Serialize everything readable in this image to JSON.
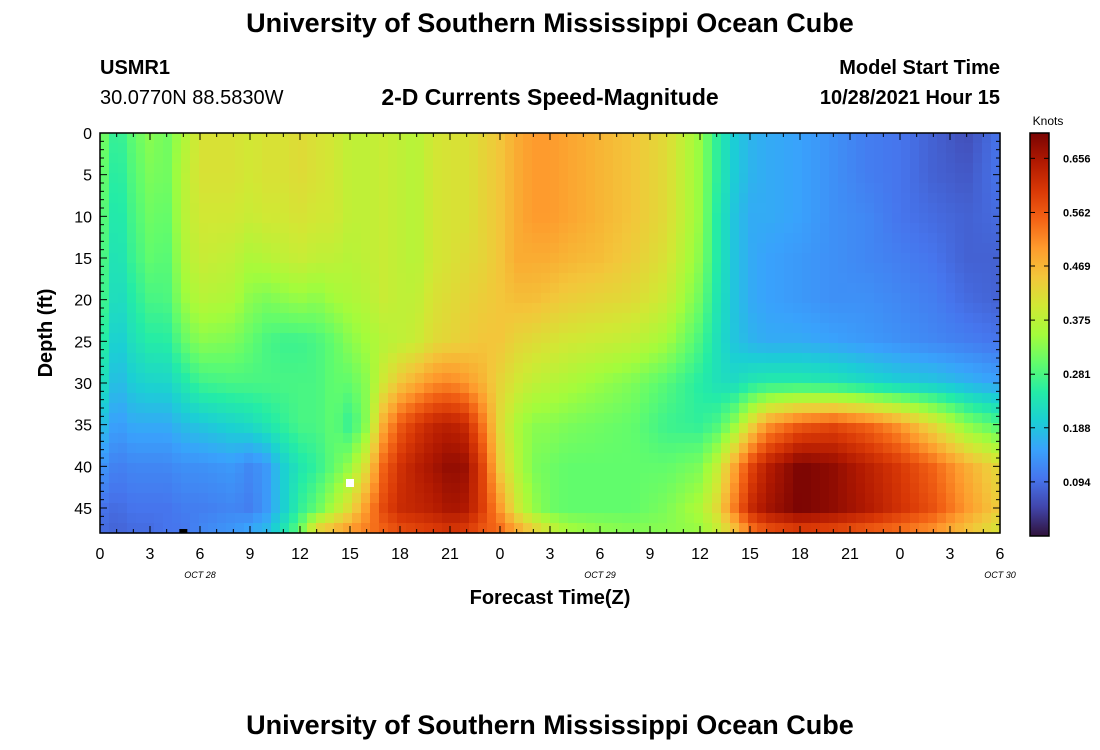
{
  "page": {
    "title_top": "University of Southern Mississippi Ocean Cube",
    "title_bottom": "University of Southern Mississippi Ocean Cube"
  },
  "header": {
    "station": "USMR1",
    "coords": "30.0770N  88.5830W",
    "product": "2-D Currents Speed-Magnitude",
    "model_start_label": "Model Start Time",
    "model_start_value": "10/28/2021 Hour 15"
  },
  "chart_data": {
    "type": "heatmap",
    "title": "2-D Currents Speed-Magnitude",
    "xlabel": "Forecast Time(Z)",
    "ylabel": "Depth (ft)",
    "x_tick_labels": [
      "0",
      "3",
      "6",
      "9",
      "12",
      "15",
      "18",
      "21",
      "0",
      "3",
      "6",
      "9",
      "12",
      "15",
      "18",
      "21",
      "0",
      "3",
      "6"
    ],
    "x_date_labels": [
      {
        "label": "OCT 28",
        "at_hours": 6
      },
      {
        "label": "OCT 29",
        "at_hours": 30
      },
      {
        "label": "OCT 30",
        "at_hours": 54
      }
    ],
    "x_hours_range": [
      0,
      54
    ],
    "y_ticks": [
      0,
      5,
      10,
      15,
      20,
      25,
      30,
      35,
      40,
      45
    ],
    "ylim": [
      0,
      48
    ],
    "colorbar": {
      "label": "Knots",
      "ticks": [
        "0.656",
        "0.562",
        "0.469",
        "0.375",
        "0.281",
        "0.188",
        "0.094"
      ],
      "range": [
        0.0,
        0.7
      ],
      "colors": [
        "#30123b",
        "#4145ab",
        "#4675ed",
        "#39a2fc",
        "#1bcfd4",
        "#24eca6",
        "#61fc6c",
        "#a4fc3b",
        "#d1e834",
        "#f3c63a",
        "#fe9b2d",
        "#f36315",
        "#d93806",
        "#b11901",
        "#7a0403"
      ]
    },
    "markers": [
      {
        "hour": 15,
        "depth": 42,
        "color": "#ffffff"
      },
      {
        "hour": 5,
        "depth": 48,
        "color": "#000000"
      }
    ],
    "speed_profile_time_hours": [
      0,
      1,
      2,
      3,
      4,
      5,
      6,
      8,
      9,
      10,
      11,
      12,
      13,
      14,
      15,
      16,
      17,
      18,
      19,
      20,
      21,
      22,
      23,
      24,
      25,
      26,
      27,
      28,
      30,
      32,
      34,
      36,
      37,
      38,
      39,
      40,
      42,
      44,
      46,
      48,
      50,
      52,
      54
    ],
    "speed_profile_depths_ft": [
      0,
      5,
      10,
      15,
      20,
      25,
      30,
      35,
      40,
      45,
      48
    ],
    "speed_knots": [
      [
        0.33,
        0.32,
        0.31,
        0.3,
        0.29,
        0.27,
        0.24,
        0.19,
        0.14,
        0.1,
        0.09
      ],
      [
        0.25,
        0.24,
        0.23,
        0.22,
        0.21,
        0.19,
        0.17,
        0.14,
        0.11,
        0.09,
        0.08
      ],
      [
        0.3,
        0.29,
        0.28,
        0.27,
        0.25,
        0.23,
        0.2,
        0.16,
        0.12,
        0.1,
        0.09
      ],
      [
        0.33,
        0.32,
        0.31,
        0.3,
        0.28,
        0.25,
        0.21,
        0.16,
        0.12,
        0.1,
        0.09
      ],
      [
        0.31,
        0.31,
        0.3,
        0.29,
        0.28,
        0.25,
        0.21,
        0.16,
        0.12,
        0.1,
        0.1
      ],
      [
        0.36,
        0.37,
        0.37,
        0.36,
        0.34,
        0.3,
        0.24,
        0.18,
        0.13,
        0.11,
        0.1
      ],
      [
        0.41,
        0.41,
        0.4,
        0.39,
        0.37,
        0.33,
        0.27,
        0.19,
        0.13,
        0.11,
        0.12
      ],
      [
        0.41,
        0.41,
        0.4,
        0.38,
        0.36,
        0.32,
        0.28,
        0.21,
        0.14,
        0.12,
        0.14
      ],
      [
        0.4,
        0.4,
        0.39,
        0.36,
        0.33,
        0.3,
        0.28,
        0.22,
        0.12,
        0.11,
        0.16
      ],
      [
        0.41,
        0.41,
        0.4,
        0.37,
        0.32,
        0.28,
        0.28,
        0.24,
        0.14,
        0.14,
        0.18
      ],
      [
        0.41,
        0.41,
        0.4,
        0.38,
        0.33,
        0.27,
        0.28,
        0.26,
        0.2,
        0.2,
        0.24
      ],
      [
        0.42,
        0.42,
        0.41,
        0.39,
        0.34,
        0.27,
        0.28,
        0.28,
        0.24,
        0.26,
        0.31
      ],
      [
        0.41,
        0.41,
        0.4,
        0.38,
        0.33,
        0.28,
        0.28,
        0.28,
        0.26,
        0.3,
        0.45
      ],
      [
        0.4,
        0.4,
        0.4,
        0.38,
        0.35,
        0.3,
        0.3,
        0.3,
        0.3,
        0.36,
        0.48
      ],
      [
        0.38,
        0.38,
        0.38,
        0.37,
        0.36,
        0.33,
        0.3,
        0.26,
        0.34,
        0.42,
        0.51
      ],
      [
        0.38,
        0.38,
        0.38,
        0.38,
        0.37,
        0.35,
        0.33,
        0.33,
        0.42,
        0.5,
        0.53
      ],
      [
        0.39,
        0.39,
        0.39,
        0.39,
        0.39,
        0.37,
        0.4,
        0.48,
        0.55,
        0.58,
        0.55
      ],
      [
        0.38,
        0.38,
        0.38,
        0.38,
        0.38,
        0.38,
        0.45,
        0.56,
        0.61,
        0.62,
        0.57
      ],
      [
        0.37,
        0.37,
        0.37,
        0.37,
        0.38,
        0.39,
        0.48,
        0.6,
        0.64,
        0.63,
        0.58
      ],
      [
        0.4,
        0.4,
        0.4,
        0.4,
        0.41,
        0.42,
        0.51,
        0.63,
        0.66,
        0.64,
        0.59
      ],
      [
        0.41,
        0.41,
        0.41,
        0.41,
        0.42,
        0.43,
        0.52,
        0.64,
        0.68,
        0.66,
        0.6
      ],
      [
        0.41,
        0.41,
        0.41,
        0.42,
        0.43,
        0.44,
        0.5,
        0.62,
        0.67,
        0.65,
        0.59
      ],
      [
        0.43,
        0.43,
        0.43,
        0.43,
        0.44,
        0.45,
        0.47,
        0.53,
        0.58,
        0.59,
        0.56
      ],
      [
        0.45,
        0.45,
        0.45,
        0.45,
        0.45,
        0.45,
        0.43,
        0.42,
        0.44,
        0.5,
        0.55
      ],
      [
        0.48,
        0.48,
        0.48,
        0.48,
        0.46,
        0.43,
        0.4,
        0.36,
        0.37,
        0.4,
        0.5
      ],
      [
        0.5,
        0.5,
        0.5,
        0.48,
        0.46,
        0.42,
        0.38,
        0.33,
        0.32,
        0.34,
        0.45
      ],
      [
        0.5,
        0.5,
        0.5,
        0.48,
        0.45,
        0.41,
        0.37,
        0.33,
        0.31,
        0.31,
        0.4
      ],
      [
        0.49,
        0.49,
        0.49,
        0.47,
        0.44,
        0.4,
        0.36,
        0.32,
        0.3,
        0.3,
        0.36
      ],
      [
        0.47,
        0.47,
        0.47,
        0.46,
        0.43,
        0.39,
        0.34,
        0.31,
        0.3,
        0.3,
        0.34
      ],
      [
        0.45,
        0.45,
        0.45,
        0.44,
        0.42,
        0.38,
        0.32,
        0.3,
        0.3,
        0.3,
        0.33
      ],
      [
        0.42,
        0.42,
        0.42,
        0.41,
        0.39,
        0.35,
        0.29,
        0.27,
        0.3,
        0.32,
        0.33
      ],
      [
        0.34,
        0.34,
        0.34,
        0.33,
        0.31,
        0.28,
        0.25,
        0.26,
        0.32,
        0.36,
        0.34
      ],
      [
        0.26,
        0.26,
        0.25,
        0.25,
        0.24,
        0.23,
        0.23,
        0.28,
        0.38,
        0.42,
        0.38
      ],
      [
        0.2,
        0.2,
        0.19,
        0.19,
        0.19,
        0.19,
        0.22,
        0.33,
        0.48,
        0.52,
        0.44
      ],
      [
        0.17,
        0.17,
        0.16,
        0.16,
        0.16,
        0.17,
        0.24,
        0.42,
        0.58,
        0.62,
        0.52
      ],
      [
        0.16,
        0.16,
        0.16,
        0.15,
        0.15,
        0.16,
        0.25,
        0.5,
        0.64,
        0.66,
        0.56
      ],
      [
        0.15,
        0.15,
        0.15,
        0.14,
        0.14,
        0.16,
        0.25,
        0.56,
        0.7,
        0.7,
        0.58
      ],
      [
        0.13,
        0.13,
        0.13,
        0.13,
        0.13,
        0.15,
        0.24,
        0.58,
        0.68,
        0.68,
        0.57
      ],
      [
        0.11,
        0.11,
        0.12,
        0.12,
        0.13,
        0.14,
        0.22,
        0.55,
        0.64,
        0.65,
        0.55
      ],
      [
        0.1,
        0.1,
        0.1,
        0.11,
        0.12,
        0.13,
        0.2,
        0.5,
        0.6,
        0.61,
        0.53
      ],
      [
        0.08,
        0.08,
        0.09,
        0.1,
        0.11,
        0.12,
        0.19,
        0.42,
        0.55,
        0.57,
        0.5
      ],
      [
        0.06,
        0.07,
        0.08,
        0.08,
        0.09,
        0.11,
        0.17,
        0.33,
        0.48,
        0.5,
        0.45
      ],
      [
        0.1,
        0.1,
        0.09,
        0.08,
        0.08,
        0.1,
        0.15,
        0.28,
        0.42,
        0.44,
        0.4
      ]
    ]
  }
}
